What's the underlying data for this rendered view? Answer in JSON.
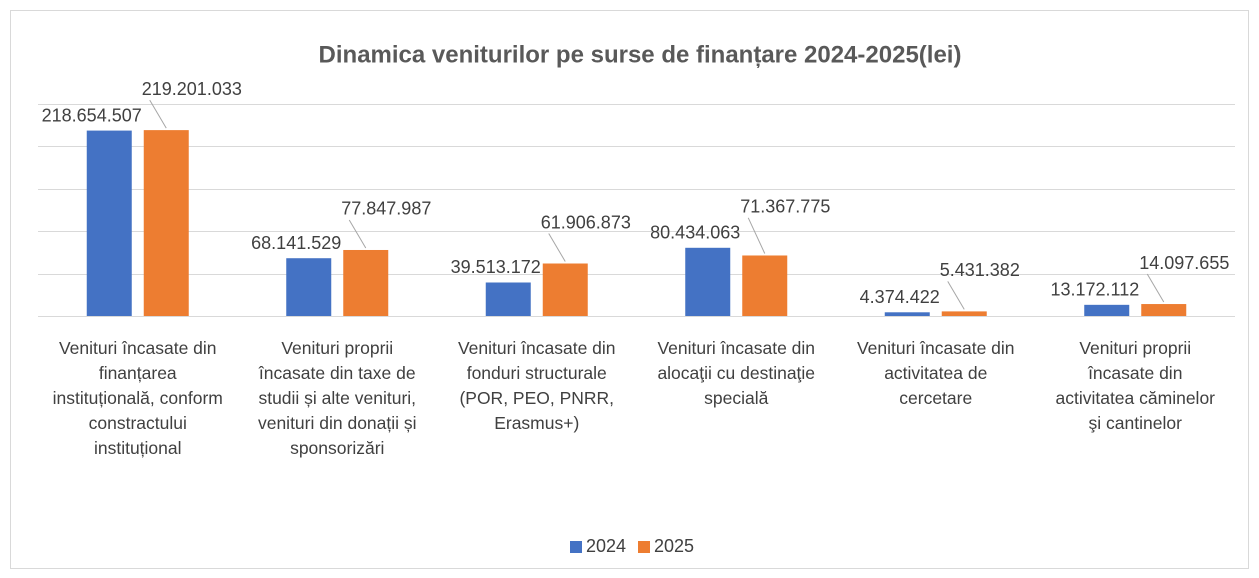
{
  "chart_data": {
    "type": "bar",
    "title": "Dinamica veniturilor pe surse de finanțare 2024-2025(lei)",
    "categories": [
      "Venituri încasate din finanțarea instituțională, conform constractului instituțional",
      "Venituri proprii încasate din taxe de studii și alte venituri, venituri din donații și sponsorizări",
      "Venituri încasate din fonduri structurale  (POR, PEO, PNRR, Erasmus+)",
      "Venituri încasate din alocaţii cu destinaţie specială",
      "Venituri încasate din activitatea de cercetare",
      "Venituri proprii încasate din activitatea căminelor şi cantinelor"
    ],
    "series": [
      {
        "name": "2024",
        "color": "#4472c4",
        "values": [
          218654507,
          68141529,
          39513172,
          80434063,
          4374422,
          13172112
        ],
        "value_labels": [
          "218.654.507",
          "68.141.529",
          "39.513.172",
          "80.434.063",
          "4.374.422",
          "13.172.112"
        ]
      },
      {
        "name": "2025",
        "color": "#ed7d31",
        "values": [
          219201033,
          77847987,
          61906873,
          71367775,
          5431382,
          14097655
        ],
        "value_labels": [
          "219.201.033",
          "77.847.987",
          "61.906.873",
          "71.367.775",
          "5.431.382",
          "14.097.655"
        ]
      }
    ],
    "ylim": [
      0,
      250000000
    ],
    "yticks": [
      0,
      50000000,
      100000000,
      150000000,
      200000000,
      250000000
    ],
    "grid": true,
    "legend": "bottom"
  }
}
